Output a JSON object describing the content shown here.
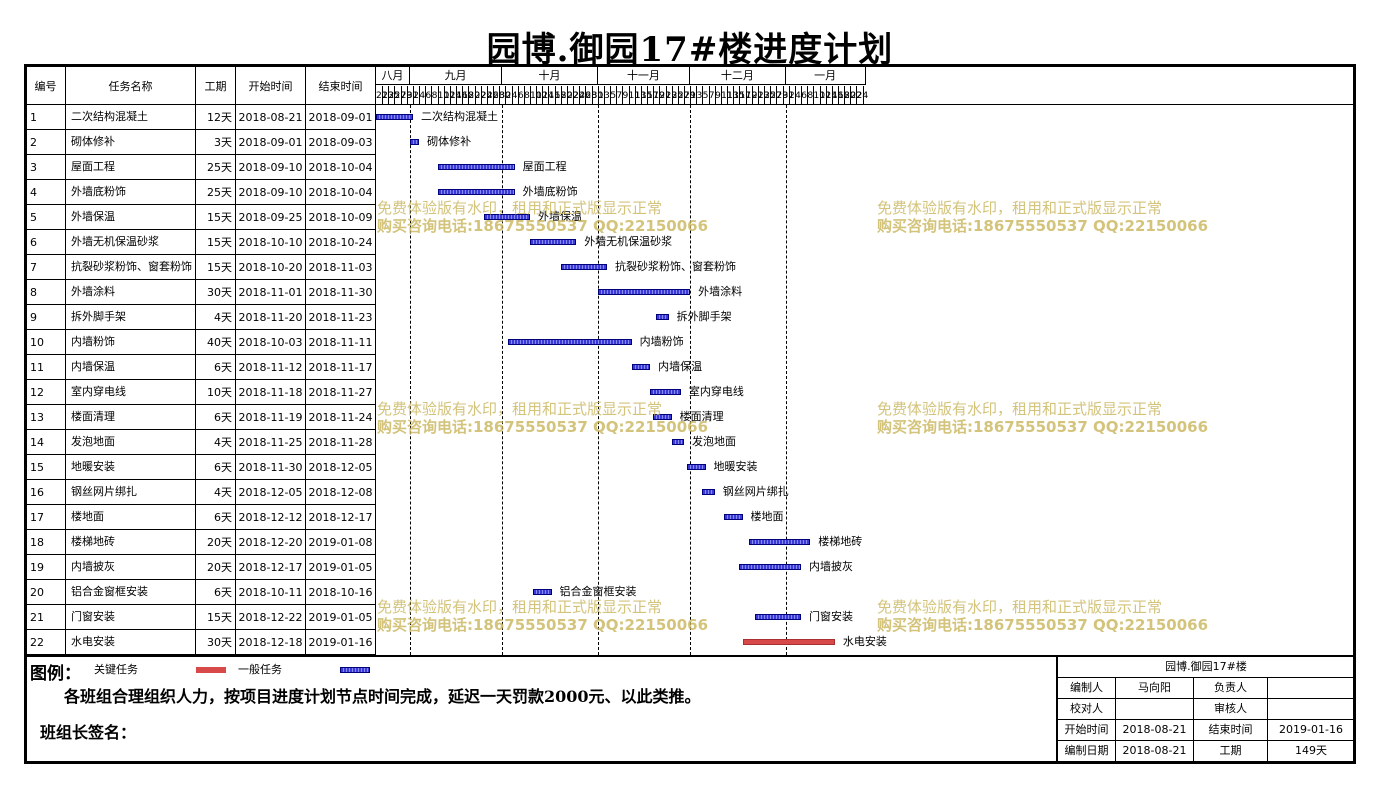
{
  "title": "园博.御园17#楼进度计划",
  "headers": {
    "id": "编号",
    "name": "任务名称",
    "duration": "工期",
    "start": "开始时间",
    "end": "结束时间"
  },
  "months": [
    "八月",
    "九月",
    "十月",
    "十一月",
    "十二月",
    "一月"
  ],
  "day_labels": [
    "21",
    "23",
    "25",
    "27",
    "29",
    "31",
    "2",
    "4",
    "6",
    "8",
    "10",
    "12",
    "14",
    "16",
    "18",
    "20",
    "22",
    "24",
    "26",
    "28",
    "30",
    "2",
    "4",
    "6",
    "8",
    "10",
    "12",
    "14",
    "16",
    "18",
    "20",
    "22",
    "24",
    "26",
    "28",
    "30",
    "1",
    "3",
    "5",
    "7",
    "9",
    "11",
    "13",
    "15",
    "17",
    "19",
    "21",
    "23",
    "25",
    "27",
    "29",
    "1",
    "3",
    "5",
    "7",
    "9",
    "11",
    "13",
    "15",
    "17",
    "19",
    "21",
    "23",
    "25",
    "27",
    "29",
    "31",
    "2",
    "4",
    "6",
    "8",
    "10",
    "12",
    "14",
    "16",
    "18",
    "20",
    "22",
    "24"
  ],
  "tasks": [
    {
      "id": "1",
      "name": "二次结构混凝土",
      "duration": "12天",
      "start": "2018-08-21",
      "end": "2018-09-01",
      "critical": false
    },
    {
      "id": "2",
      "name": "砌体修补",
      "duration": "3天",
      "start": "2018-09-01",
      "end": "2018-09-03",
      "critical": false
    },
    {
      "id": "3",
      "name": "屋面工程",
      "duration": "25天",
      "start": "2018-09-10",
      "end": "2018-10-04",
      "critical": false
    },
    {
      "id": "4",
      "name": "外墙底粉饰",
      "duration": "25天",
      "start": "2018-09-10",
      "end": "2018-10-04",
      "critical": false
    },
    {
      "id": "5",
      "name": "外墙保温",
      "duration": "15天",
      "start": "2018-09-25",
      "end": "2018-10-09",
      "critical": false
    },
    {
      "id": "6",
      "name": "外墙无机保温砂浆",
      "duration": "15天",
      "start": "2018-10-10",
      "end": "2018-10-24",
      "critical": false
    },
    {
      "id": "7",
      "name": "抗裂砂浆粉饰、窗套粉饰",
      "duration": "15天",
      "start": "2018-10-20",
      "end": "2018-11-03",
      "critical": false
    },
    {
      "id": "8",
      "name": "外墙涂料",
      "duration": "30天",
      "start": "2018-11-01",
      "end": "2018-11-30",
      "critical": false
    },
    {
      "id": "9",
      "name": "拆外脚手架",
      "duration": "4天",
      "start": "2018-11-20",
      "end": "2018-11-23",
      "critical": false
    },
    {
      "id": "10",
      "name": "内墙粉饰",
      "duration": "40天",
      "start": "2018-10-03",
      "end": "2018-11-11",
      "critical": false
    },
    {
      "id": "11",
      "name": "内墙保温",
      "duration": "6天",
      "start": "2018-11-12",
      "end": "2018-11-17",
      "critical": false
    },
    {
      "id": "12",
      "name": "室内穿电线",
      "duration": "10天",
      "start": "2018-11-18",
      "end": "2018-11-27",
      "critical": false
    },
    {
      "id": "13",
      "name": "楼面清理",
      "duration": "6天",
      "start": "2018-11-19",
      "end": "2018-11-24",
      "critical": false
    },
    {
      "id": "14",
      "name": "发泡地面",
      "duration": "4天",
      "start": "2018-11-25",
      "end": "2018-11-28",
      "critical": false
    },
    {
      "id": "15",
      "name": "地暖安装",
      "duration": "6天",
      "start": "2018-11-30",
      "end": "2018-12-05",
      "critical": false
    },
    {
      "id": "16",
      "name": "钢丝网片绑扎",
      "duration": "4天",
      "start": "2018-12-05",
      "end": "2018-12-08",
      "critical": false
    },
    {
      "id": "17",
      "name": "楼地面",
      "duration": "6天",
      "start": "2018-12-12",
      "end": "2018-12-17",
      "critical": false
    },
    {
      "id": "18",
      "name": "楼梯地砖",
      "duration": "20天",
      "start": "2018-12-20",
      "end": "2019-01-08",
      "critical": false
    },
    {
      "id": "19",
      "name": "内墙披灰",
      "duration": "20天",
      "start": "2018-12-17",
      "end": "2019-01-05",
      "critical": false
    },
    {
      "id": "20",
      "name": "铝合金窗框安装",
      "duration": "6天",
      "start": "2018-10-11",
      "end": "2018-10-16",
      "critical": false
    },
    {
      "id": "21",
      "name": "门窗安装",
      "duration": "15天",
      "start": "2018-12-22",
      "end": "2019-01-05",
      "critical": false
    },
    {
      "id": "22",
      "name": "水电安装",
      "duration": "30天",
      "start": "2018-12-18",
      "end": "2019-01-16",
      "critical": true
    }
  ],
  "watermark": {
    "line1": "免费体验版有水印，租用和正式版显示正常",
    "line2": "购买咨询电话:18675550537 QQ:22150066"
  },
  "legend": {
    "title": "图例：",
    "critical_label": "关键任务",
    "normal_label": "一般任务",
    "critical_color": "#d84a4a",
    "normal_color": "#3a3ad8"
  },
  "note": "各班组合理组织人力，按项目进度计划节点时间完成，延迟一天罚款2000元、以此类推。",
  "sign_label": "班组长签名：",
  "info": {
    "title": "园博.御园17#楼",
    "editor_label": "编制人",
    "editor": "马向阳",
    "owner_label": "负责人",
    "owner": "",
    "checker_label": "校对人",
    "checker": "",
    "auditor_label": "审核人",
    "auditor": "",
    "start_label": "开始时间",
    "start": "2018-08-21",
    "end_label": "结束时间",
    "end": "2019-01-16",
    "date_label": "编制日期",
    "date": "2018-08-21",
    "duration_label": "工期",
    "duration": "149天"
  }
}
